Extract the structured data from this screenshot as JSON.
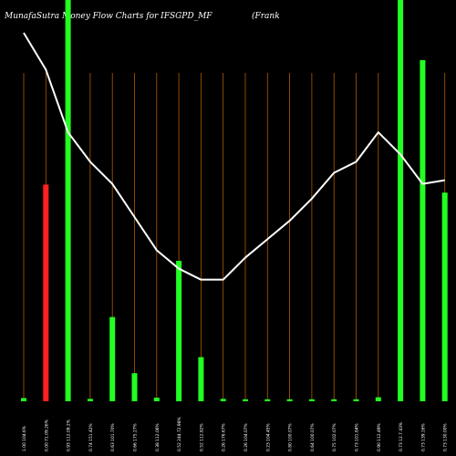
{
  "header": {
    "title": "MunafaSutra  Money Flow  Charts for IFSGPD_MF",
    "title_right": "(Frank"
  },
  "colors": {
    "background": "#000000",
    "inflow": "#22ff22",
    "outflow": "#ff2020",
    "grid": "#b35a00",
    "line": "#ffffff",
    "label": "#ffffff"
  },
  "chart_data": {
    "type": "bar",
    "title": "MunafaSutra  Money Flow  Charts for IFSGPD_MF",
    "xlabel": "",
    "ylabel": "",
    "ylim": [
      0,
      100
    ],
    "grid": true,
    "categories": [
      "1.00 104.6%",
      "0.00 71.09.26%",
      "0.93 112.09.2%",
      "0.74 151.42%",
      "0.63 101.70%",
      "0.66 175.27%",
      "0.38 112.06%",
      "0.52 244.72.98%",
      "0.52 112.82%",
      "0.26 176.67%",
      "0.26 104.07%",
      "0.23 104.45%",
      "0.80 100.07%",
      "0.64 100.07%",
      "0.75 102.07%",
      "0.73 101.84%",
      "0.90 112.49%",
      "0.73 12.7.43%",
      "0.73 139.16%",
      "0.73 130.00%"
    ],
    "series": [
      {
        "values": [
          0.8,
          54,
          100,
          0.6,
          21,
          7,
          0.9,
          35,
          11,
          0.6,
          0.5,
          0.5,
          0.5,
          0.5,
          0.5,
          0.5,
          1,
          100,
          85,
          52
        ],
        "direction": [
          "in",
          "out",
          "in",
          "in",
          "in",
          "in",
          "in",
          "in",
          "in",
          "in",
          "in",
          "in",
          "in",
          "in",
          "in",
          "in",
          "in",
          "in",
          "in",
          "in"
        ]
      },
      {
        "values": [
          100,
          90,
          73,
          65,
          59,
          50,
          41,
          36,
          33,
          33,
          39,
          44,
          49,
          55,
          62,
          65,
          73,
          67,
          59,
          60
        ]
      }
    ]
  }
}
